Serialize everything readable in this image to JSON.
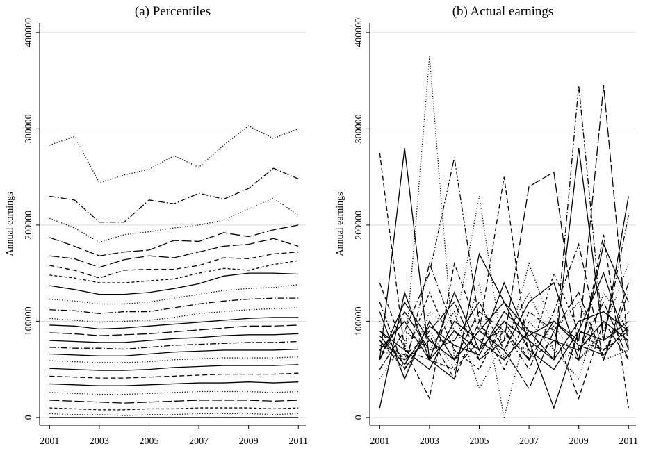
{
  "chart_data": [
    {
      "type": "line",
      "title": "(a) Percentiles",
      "ylabel": "Annual earnings",
      "x": [
        2001,
        2002,
        2003,
        2004,
        2005,
        2006,
        2007,
        2008,
        2009,
        2010,
        2011
      ],
      "xlim": [
        2000.6,
        2011.3
      ],
      "xticks": [
        2001,
        2003,
        2005,
        2007,
        2009,
        2011
      ],
      "ylim": [
        -8000,
        410000
      ],
      "yticks": [
        0,
        100000,
        200000,
        300000,
        400000
      ],
      "grid": true,
      "color": "#000000",
      "series": [
        {
          "dash": "dot",
          "values": [
            283000,
            292000,
            244000,
            252000,
            258000,
            272000,
            260000,
            283000,
            303000,
            290000,
            300000
          ]
        },
        {
          "dash": "dashdot",
          "values": [
            230000,
            226000,
            203000,
            203000,
            226000,
            222000,
            233000,
            227000,
            238000,
            259000,
            248000
          ]
        },
        {
          "dash": "dot",
          "values": [
            207000,
            197000,
            182000,
            190000,
            193000,
            197000,
            200000,
            205000,
            217000,
            228000,
            210000
          ]
        },
        {
          "dash": "longdash",
          "values": [
            187000,
            178000,
            168000,
            172000,
            174000,
            184000,
            183000,
            192000,
            188000,
            195000,
            200000
          ]
        },
        {
          "dash": "longdash",
          "values": [
            168000,
            165000,
            156000,
            164000,
            168000,
            166000,
            172000,
            178000,
            180000,
            186000,
            178000
          ]
        },
        {
          "dash": "dash",
          "values": [
            158000,
            153000,
            145000,
            153000,
            154000,
            154000,
            158000,
            166000,
            165000,
            170000,
            172000
          ]
        },
        {
          "dash": "shortdash",
          "values": [
            148000,
            145000,
            140000,
            140000,
            142000,
            144000,
            150000,
            155000,
            153000,
            159000,
            163000
          ]
        },
        {
          "dash": "solid",
          "values": [
            137000,
            133000,
            128000,
            128000,
            130000,
            134000,
            139000,
            147000,
            150000,
            150000,
            149000
          ]
        },
        {
          "dash": "dot",
          "values": [
            123000,
            121000,
            118000,
            118000,
            120000,
            124000,
            128000,
            132000,
            134000,
            135000,
            138000
          ]
        },
        {
          "dash": "dashdot",
          "values": [
            112000,
            111000,
            108000,
            110000,
            110000,
            114000,
            118000,
            121000,
            123000,
            124000,
            124000
          ]
        },
        {
          "dash": "dot",
          "values": [
            103000,
            101000,
            99000,
            100000,
            101000,
            104000,
            108000,
            110000,
            112000,
            113000,
            114000
          ]
        },
        {
          "dash": "solid",
          "values": [
            96000,
            95000,
            92000,
            93000,
            95000,
            97000,
            99000,
            101000,
            103000,
            104000,
            104000
          ]
        },
        {
          "dash": "longdash",
          "values": [
            88000,
            87000,
            85000,
            86000,
            87000,
            89000,
            91000,
            93000,
            95000,
            95000,
            96000
          ]
        },
        {
          "dash": "solid",
          "values": [
            80000,
            79000,
            78000,
            78000,
            80000,
            82000,
            83000,
            85000,
            86000,
            86000,
            87000
          ]
        },
        {
          "dash": "dashdot",
          "values": [
            73000,
            72000,
            72000,
            71000,
            73000,
            75000,
            76000,
            77000,
            78000,
            78000,
            79000
          ]
        },
        {
          "dash": "solid",
          "values": [
            66000,
            65000,
            64000,
            64000,
            66000,
            68000,
            69000,
            70000,
            70000,
            70000,
            71000
          ]
        },
        {
          "dash": "dot",
          "values": [
            59000,
            58000,
            57000,
            57000,
            58000,
            60000,
            61000,
            62000,
            62000,
            62000,
            63000
          ]
        },
        {
          "dash": "solid",
          "values": [
            51000,
            50000,
            49000,
            49000,
            50000,
            52000,
            53000,
            54000,
            54000,
            54000,
            55000
          ]
        },
        {
          "dash": "dash",
          "values": [
            43000,
            42000,
            41000,
            41000,
            42000,
            43000,
            44000,
            45000,
            45000,
            45000,
            46000
          ]
        },
        {
          "dash": "solid",
          "values": [
            35000,
            34000,
            33000,
            33000,
            34000,
            35000,
            36000,
            36000,
            37000,
            36000,
            37000
          ]
        },
        {
          "dash": "dot",
          "values": [
            26000,
            25000,
            24000,
            24000,
            25000,
            26000,
            27000,
            27000,
            27000,
            26000,
            27000
          ]
        },
        {
          "dash": "longdash",
          "values": [
            18000,
            17000,
            16000,
            15000,
            16000,
            17000,
            18000,
            18000,
            18000,
            17000,
            18000
          ]
        },
        {
          "dash": "shortdash",
          "values": [
            10000,
            9000,
            8000,
            8000,
            9000,
            9000,
            10000,
            10000,
            10000,
            9000,
            10000
          ]
        },
        {
          "dash": "dot",
          "values": [
            4000,
            3000,
            3000,
            2000,
            3000,
            3000,
            4000,
            4000,
            4000,
            3000,
            4000
          ]
        },
        {
          "dash": "solid",
          "values": [
            0,
            0,
            0,
            0,
            0,
            0,
            0,
            0,
            0,
            0,
            0
          ]
        }
      ]
    },
    {
      "type": "line",
      "title": "(b) Actual earnings",
      "ylabel": "Annual earnings",
      "x": [
        2001,
        2002,
        2003,
        2004,
        2005,
        2006,
        2007,
        2008,
        2009,
        2010,
        2011
      ],
      "xlim": [
        2000.6,
        2011.3
      ],
      "xticks": [
        2001,
        2003,
        2005,
        2007,
        2009,
        2011
      ],
      "ylim": [
        -8000,
        410000
      ],
      "yticks": [
        0,
        100000,
        200000,
        300000,
        400000
      ],
      "grid": true,
      "color": "#000000",
      "series": [
        {
          "dash": "dot",
          "values": [
            70000,
            60000,
            375000,
            60000,
            90000,
            80000,
            70000,
            95000,
            60000,
            85000,
            80000
          ]
        },
        {
          "dash": "dash",
          "values": [
            275000,
            70000,
            60000,
            50000,
            80000,
            90000,
            60000,
            100000,
            80000,
            70000,
            90000
          ]
        },
        {
          "dash": "solid",
          "values": [
            60000,
            280000,
            60000,
            90000,
            70000,
            100000,
            80000,
            10000,
            90000,
            80000,
            230000
          ]
        },
        {
          "dash": "longdash",
          "values": [
            80000,
            50000,
            90000,
            120000,
            60000,
            80000,
            240000,
            255000,
            70000,
            120000,
            60000
          ]
        },
        {
          "dash": "dashdot",
          "values": [
            50000,
            90000,
            150000,
            270000,
            100000,
            60000,
            90000,
            60000,
            345000,
            80000,
            210000
          ]
        },
        {
          "dash": "longdash",
          "values": [
            90000,
            60000,
            80000,
            60000,
            110000,
            90000,
            60000,
            100000,
            80000,
            345000,
            70000
          ]
        },
        {
          "dash": "solid",
          "values": [
            10000,
            130000,
            60000,
            40000,
            170000,
            120000,
            90000,
            60000,
            280000,
            80000,
            100000
          ]
        },
        {
          "dash": "dot",
          "values": [
            100000,
            40000,
            110000,
            90000,
            230000,
            60000,
            160000,
            90000,
            120000,
            60000,
            70000
          ]
        },
        {
          "dash": "dash",
          "values": [
            140000,
            70000,
            20000,
            160000,
            90000,
            250000,
            60000,
            80000,
            60000,
            190000,
            10000
          ]
        },
        {
          "dash": "solid",
          "values": [
            60000,
            120000,
            80000,
            60000,
            90000,
            70000,
            120000,
            140000,
            60000,
            180000,
            120000
          ]
        },
        {
          "dash": "dashdot",
          "values": [
            120000,
            50000,
            160000,
            90000,
            60000,
            90000,
            50000,
            110000,
            180000,
            60000,
            130000
          ]
        },
        {
          "dash": "solid",
          "values": [
            70000,
            100000,
            60000,
            130000,
            70000,
            140000,
            80000,
            60000,
            100000,
            110000,
            90000
          ]
        },
        {
          "dash": "dot",
          "values": [
            40000,
            80000,
            90000,
            50000,
            140000,
            0,
            100000,
            70000,
            40000,
            130000,
            90000
          ]
        },
        {
          "dash": "shortdash",
          "values": [
            80000,
            60000,
            130000,
            70000,
            50000,
            100000,
            60000,
            150000,
            90000,
            70000,
            110000
          ]
        },
        {
          "dash": "solid",
          "values": [
            90000,
            70000,
            50000,
            100000,
            80000,
            60000,
            90000,
            80000,
            70000,
            100000,
            80000
          ]
        },
        {
          "dash": "longdash",
          "values": [
            60000,
            110000,
            70000,
            80000,
            120000,
            70000,
            30000,
            90000,
            130000,
            60000,
            140000
          ]
        },
        {
          "dash": "solid",
          "values": [
            110000,
            40000,
            100000,
            60000,
            90000,
            120000,
            70000,
            50000,
            90000,
            150000,
            70000
          ]
        },
        {
          "dash": "dot",
          "values": [
            50000,
            90000,
            70000,
            110000,
            30000,
            80000,
            130000,
            70000,
            60000,
            90000,
            160000
          ]
        },
        {
          "dash": "dash",
          "values": [
            75000,
            65000,
            85000,
            40000,
            100000,
            50000,
            110000,
            90000,
            20000,
            100000,
            60000
          ]
        },
        {
          "dash": "solid",
          "values": [
            85000,
            55000,
            95000,
            75000,
            65000,
            110000,
            85000,
            100000,
            75000,
            65000,
            95000
          ]
        }
      ]
    }
  ]
}
